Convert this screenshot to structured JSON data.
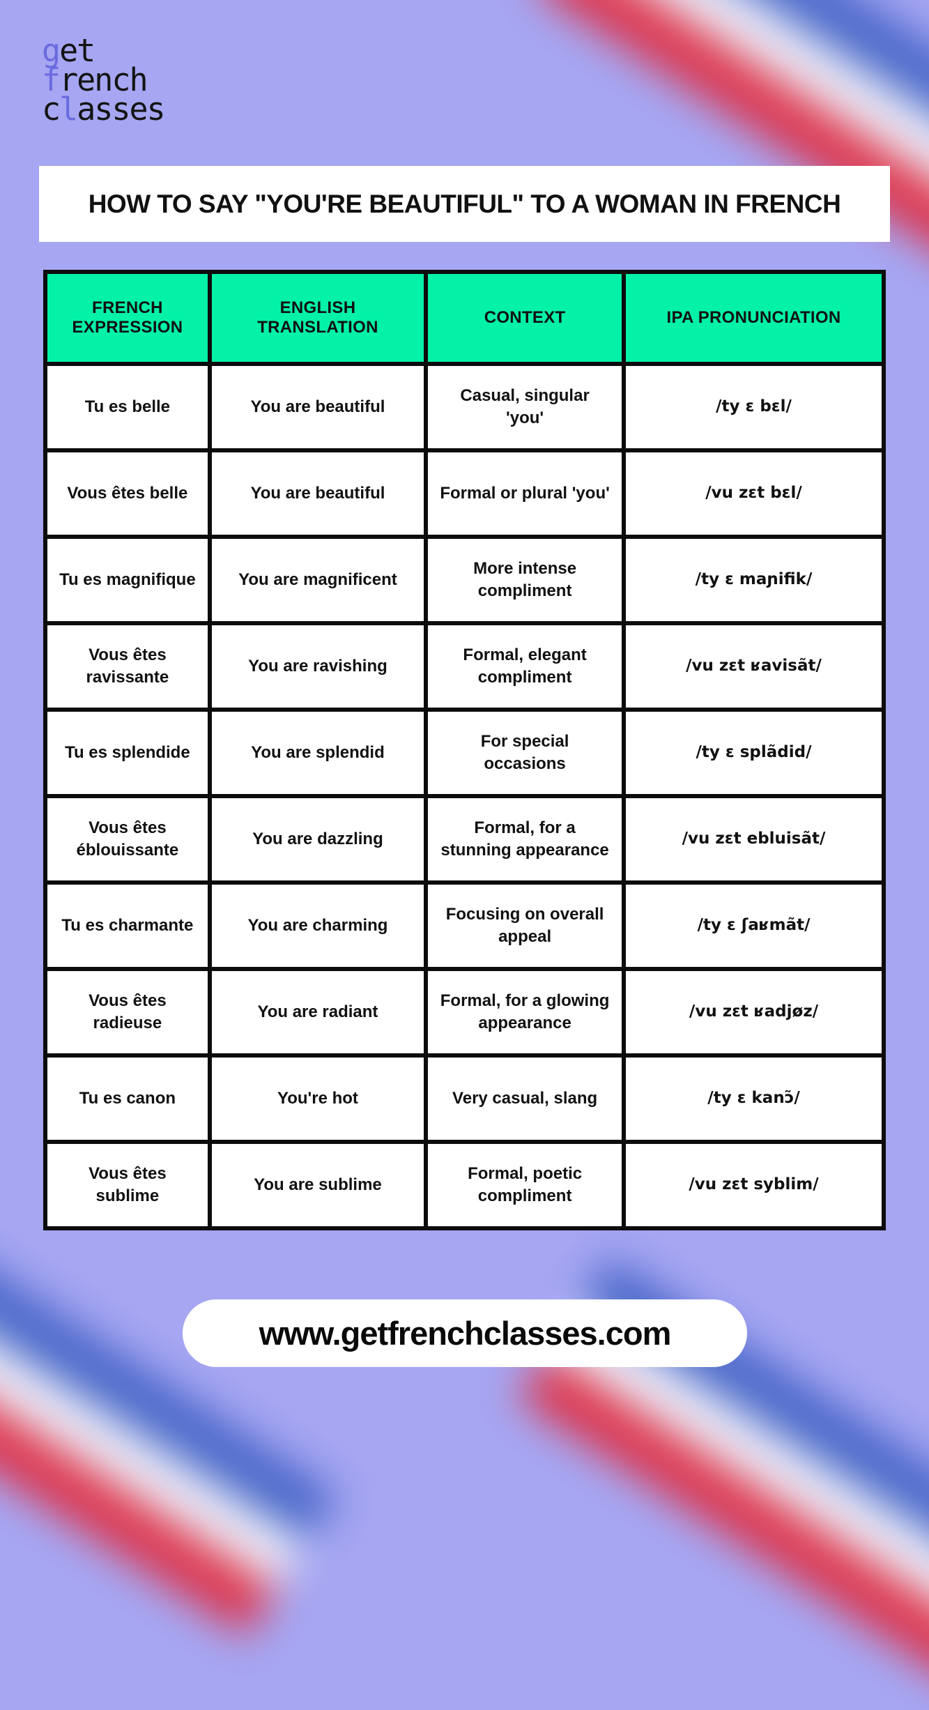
{
  "logo": {
    "lines": [
      {
        "pre": "",
        "accent": "g",
        "rest": "et"
      },
      {
        "pre": "",
        "accent": "f",
        "rest": "rench"
      },
      {
        "pre": "c",
        "accent": "l",
        "rest": "asses"
      }
    ]
  },
  "title": "HOW TO SAY \"YOU'RE BEAUTIFUL\" TO A WOMAN IN FRENCH",
  "table": {
    "headers": [
      "FRENCH EXPRESSION",
      "ENGLISH TRANSLATION",
      "CONTEXT",
      "IPA PRONUNCIATION"
    ],
    "rows": [
      {
        "french": "Tu es belle",
        "english": "You are beautiful",
        "context": "Casual, singular 'you'",
        "ipa": "/ty ɛ bɛl/"
      },
      {
        "french": "Vous êtes belle",
        "english": "You are beautiful",
        "context": "Formal or plural 'you'",
        "ipa": "/vu zɛt bɛl/"
      },
      {
        "french": "Tu es magnifique",
        "english": "You are magnificent",
        "context": "More intense compliment",
        "ipa": "/ty ɛ maɲifik/"
      },
      {
        "french": "Vous êtes ravissante",
        "english": "You are ravishing",
        "context": "Formal, elegant compliment",
        "ipa": "/vu zɛt ʁavisãt/"
      },
      {
        "french": "Tu es splendide",
        "english": "You are splendid",
        "context": "For special occasions",
        "ipa": "/ty ɛ splãdid/"
      },
      {
        "french": "Vous êtes éblouissante",
        "english": "You are dazzling",
        "context": "Formal, for a stunning appearance",
        "ipa": "/vu zɛt ebluisãt/"
      },
      {
        "french": "Tu es charmante",
        "english": "You are charming",
        "context": "Focusing on overall appeal",
        "ipa": "/ty ɛ ʃaʁmãt/"
      },
      {
        "french": "Vous êtes radieuse",
        "english": "You are radiant",
        "context": "Formal, for a glowing appearance",
        "ipa": "/vu zɛt ʁadjøz/"
      },
      {
        "french": "Tu es canon",
        "english": "You're hot",
        "context": "Very casual, slang",
        "ipa": "/ty ɛ kanɔ̃/"
      },
      {
        "french": "Vous êtes sublime",
        "english": "You are sublime",
        "context": "Formal, poetic compliment",
        "ipa": "/vu zɛt syblim/"
      }
    ]
  },
  "footer": {
    "url_label": "www.getfrenchclasses.com"
  },
  "colors": {
    "background": "#a6a6f2",
    "header_green": "#04f2a8",
    "accent_purple": "#6b6be0",
    "flag_blue": "#3d5fc4",
    "flag_red": "#e3293a"
  }
}
